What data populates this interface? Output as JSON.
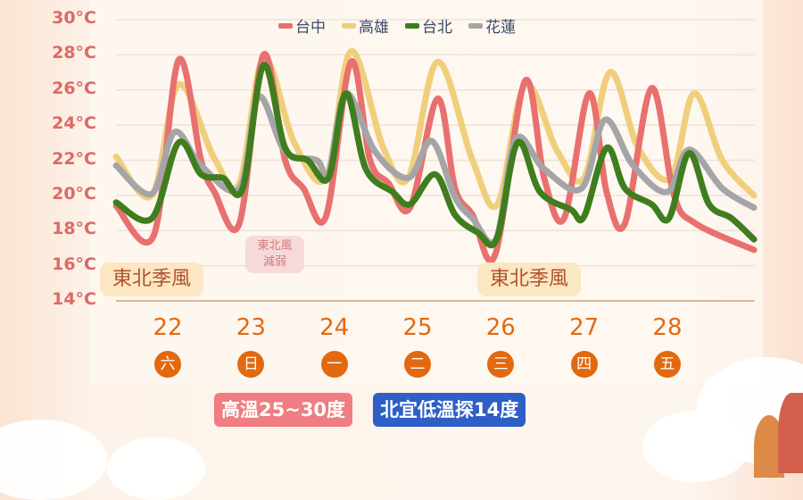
{
  "chart_data": {
    "type": "line",
    "title": "",
    "xlabel": "",
    "ylabel": "",
    "ylim": [
      14,
      30
    ],
    "yticks": [
      "30°C",
      "28°C",
      "26°C",
      "24°C",
      "22°C",
      "20°C",
      "18°C",
      "16°C",
      "14°C"
    ],
    "ytick_values": [
      30,
      28,
      26,
      24,
      22,
      20,
      18,
      16,
      14
    ],
    "grid": true,
    "legend_placement": "top-center",
    "days": [
      {
        "date": "22",
        "weekday": "六"
      },
      {
        "date": "23",
        "weekday": "日"
      },
      {
        "date": "24",
        "weekday": "一"
      },
      {
        "date": "25",
        "weekday": "二"
      },
      {
        "date": "26",
        "weekday": "三"
      },
      {
        "date": "27",
        "weekday": "四"
      },
      {
        "date": "28",
        "weekday": "五"
      }
    ],
    "series": [
      {
        "name": "高雄",
        "color": "#f0cf7c",
        "points": [
          [
            21.88,
            22.2
          ],
          [
            22.31,
            20
          ],
          [
            22.63,
            26.3
          ],
          [
            23.06,
            22.1
          ],
          [
            23.36,
            20.7
          ],
          [
            23.65,
            27.8
          ],
          [
            24.02,
            23
          ],
          [
            24.4,
            21
          ],
          [
            24.7,
            28.2
          ],
          [
            25.09,
            22.7
          ],
          [
            25.39,
            21
          ],
          [
            25.74,
            27.6
          ],
          [
            26.16,
            22
          ],
          [
            26.46,
            19.5
          ],
          [
            26.79,
            26.3
          ],
          [
            27.18,
            22.5
          ],
          [
            27.5,
            21
          ],
          [
            27.81,
            27
          ],
          [
            28.15,
            22.7
          ],
          [
            28.54,
            21
          ],
          [
            28.82,
            25.8
          ],
          [
            29.16,
            22
          ],
          [
            29.54,
            20
          ]
        ]
      },
      {
        "name": "台中",
        "color": "#e8706f",
        "points": [
          [
            21.88,
            19.4
          ],
          [
            22.33,
            17.7
          ],
          [
            22.63,
            27.7
          ],
          [
            22.9,
            22
          ],
          [
            23.06,
            20.2
          ],
          [
            23.36,
            18.4
          ],
          [
            23.65,
            28
          ],
          [
            23.91,
            22
          ],
          [
            24.13,
            20.4
          ],
          [
            24.4,
            18.8
          ],
          [
            24.7,
            27.6
          ],
          [
            24.93,
            22
          ],
          [
            25.15,
            20.7
          ],
          [
            25.41,
            19.3
          ],
          [
            25.74,
            25.5
          ],
          [
            25.95,
            20.4
          ],
          [
            26.16,
            18.9
          ],
          [
            26.43,
            16.6
          ],
          [
            26.79,
            26.5
          ],
          [
            27.02,
            21
          ],
          [
            27.26,
            18.7
          ],
          [
            27.56,
            25.8
          ],
          [
            27.77,
            20.2
          ],
          [
            27.99,
            18.4
          ],
          [
            28.31,
            26.1
          ],
          [
            28.58,
            20
          ],
          [
            28.84,
            18.4
          ],
          [
            29.54,
            16.9
          ]
        ]
      },
      {
        "name": "花蓮",
        "color": "#a5a5a8",
        "points": [
          [
            21.88,
            21.7
          ],
          [
            22.31,
            20.1
          ],
          [
            22.58,
            23.6
          ],
          [
            22.9,
            21.7
          ],
          [
            23.36,
            20.4
          ],
          [
            23.59,
            25.6
          ],
          [
            23.91,
            22.5
          ],
          [
            24.29,
            22
          ],
          [
            24.43,
            21.2
          ],
          [
            24.64,
            25.8
          ],
          [
            24.99,
            22.5
          ],
          [
            25.39,
            21
          ],
          [
            25.67,
            23.1
          ],
          [
            25.95,
            19.9
          ],
          [
            26.16,
            18.7
          ],
          [
            26.44,
            17.5
          ],
          [
            26.68,
            23.2
          ],
          [
            27.02,
            21.5
          ],
          [
            27.47,
            20.4
          ],
          [
            27.75,
            24.3
          ],
          [
            28.09,
            21.7
          ],
          [
            28.5,
            20.2
          ],
          [
            28.76,
            22.6
          ],
          [
            29.16,
            20.4
          ],
          [
            29.54,
            19.3
          ]
        ]
      },
      {
        "name": "台北",
        "color": "#3f7d1e",
        "points": [
          [
            21.88,
            19.6
          ],
          [
            22.31,
            18.7
          ],
          [
            22.63,
            23
          ],
          [
            22.9,
            21.2
          ],
          [
            23.16,
            21
          ],
          [
            23.4,
            20.4
          ],
          [
            23.65,
            27.4
          ],
          [
            23.91,
            22.7
          ],
          [
            24.18,
            22
          ],
          [
            24.43,
            21
          ],
          [
            24.64,
            25.8
          ],
          [
            24.88,
            21.5
          ],
          [
            25.2,
            20.2
          ],
          [
            25.41,
            19.5
          ],
          [
            25.71,
            21.2
          ],
          [
            25.95,
            18.9
          ],
          [
            26.22,
            17.9
          ],
          [
            26.45,
            17.5
          ],
          [
            26.7,
            23
          ],
          [
            26.97,
            20.2
          ],
          [
            27.34,
            19.2
          ],
          [
            27.5,
            18.8
          ],
          [
            27.77,
            22.7
          ],
          [
            27.99,
            20.4
          ],
          [
            28.31,
            19.5
          ],
          [
            28.52,
            18.7
          ],
          [
            28.76,
            22.4
          ],
          [
            29.0,
            19.5
          ],
          [
            29.27,
            18.7
          ],
          [
            29.54,
            17.5
          ]
        ]
      }
    ],
    "legend_order": [
      "台中",
      "高雄",
      "台北",
      "花蓮"
    ],
    "annotations": [
      "東北季風",
      "東北風 減弱",
      "東北季風"
    ]
  },
  "notes": {
    "monsoon_1": "東北季風",
    "weaken_line1": "東北風",
    "weaken_line2": "減弱",
    "monsoon_2": "東北季風"
  },
  "badges": {
    "high": "高溫25~30度",
    "low": "北宜低溫探14度"
  },
  "colors": {
    "badge_high": "#ef7d81",
    "badge_low": "#2e5fc6"
  }
}
